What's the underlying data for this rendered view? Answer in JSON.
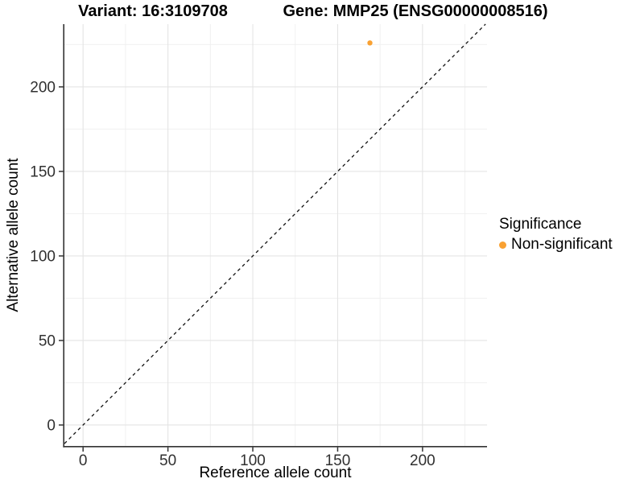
{
  "header": {
    "title_left": "Variant: 16:3109708",
    "title_right": "Gene: MMP25 (ENSG00000008516)"
  },
  "legend": {
    "title": "Significance",
    "position": "right",
    "items": [
      {
        "label": "Non-significant",
        "color": "#F9A132"
      }
    ]
  },
  "chart_data": {
    "type": "scatter",
    "title_left": "Variant: 16:3109708",
    "title_right": "Gene: MMP25 (ENSG00000008516)",
    "xlabel": "Reference allele count",
    "ylabel": "Alternative allele count",
    "xlim": [
      -11,
      238
    ],
    "ylim": [
      -12.4,
      237.1
    ],
    "xticks": [
      0,
      50,
      100,
      150,
      200
    ],
    "yticks": [
      0,
      50,
      100,
      150,
      200
    ],
    "xticks_minor": [
      25,
      75,
      125,
      175,
      225
    ],
    "yticks_minor": [
      25,
      75,
      125,
      175,
      225
    ],
    "grid": true,
    "points": [
      {
        "x": 169,
        "y": 226,
        "series": "Non-significant",
        "color": "#F9A132",
        "radius": 3.2
      }
    ],
    "reference_line": {
      "slope": 1,
      "intercept": 0,
      "style": "dashed",
      "color": "#111111"
    },
    "legend_position": "right",
    "colors": {
      "background": "#ffffff",
      "major_grid": "#e4e4e4",
      "minor_grid": "#f0f0f0",
      "axis_line": "#333333",
      "tick_mark": "#333333",
      "tick_label": "#303030"
    }
  }
}
